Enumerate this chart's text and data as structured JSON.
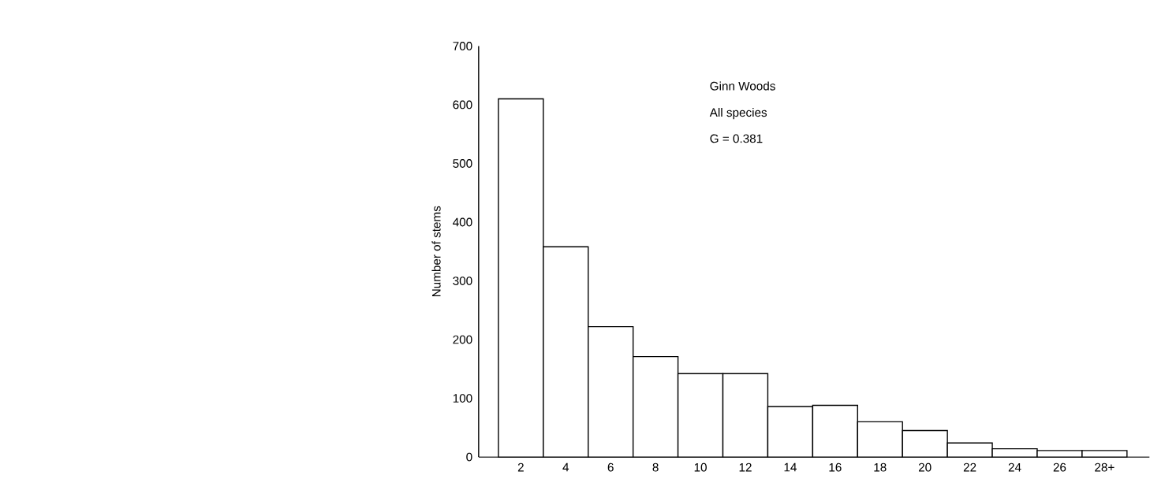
{
  "chart_data": {
    "type": "bar",
    "ylabel": "Number of stems",
    "categories": [
      "2",
      "4",
      "6",
      "8",
      "10",
      "12",
      "14",
      "16",
      "18",
      "20",
      "22",
      "24",
      "26",
      "28+"
    ],
    "values": [
      610,
      358,
      222,
      171,
      142,
      142,
      86,
      88,
      60,
      45,
      24,
      14,
      11,
      11
    ],
    "color": "#ffffff",
    "ylim": [
      0,
      700
    ],
    "yticks": [
      0,
      100,
      200,
      300,
      400,
      500,
      600,
      700
    ],
    "annotations": [
      "Ginn Woods",
      "All species",
      "G = 0.381"
    ]
  }
}
